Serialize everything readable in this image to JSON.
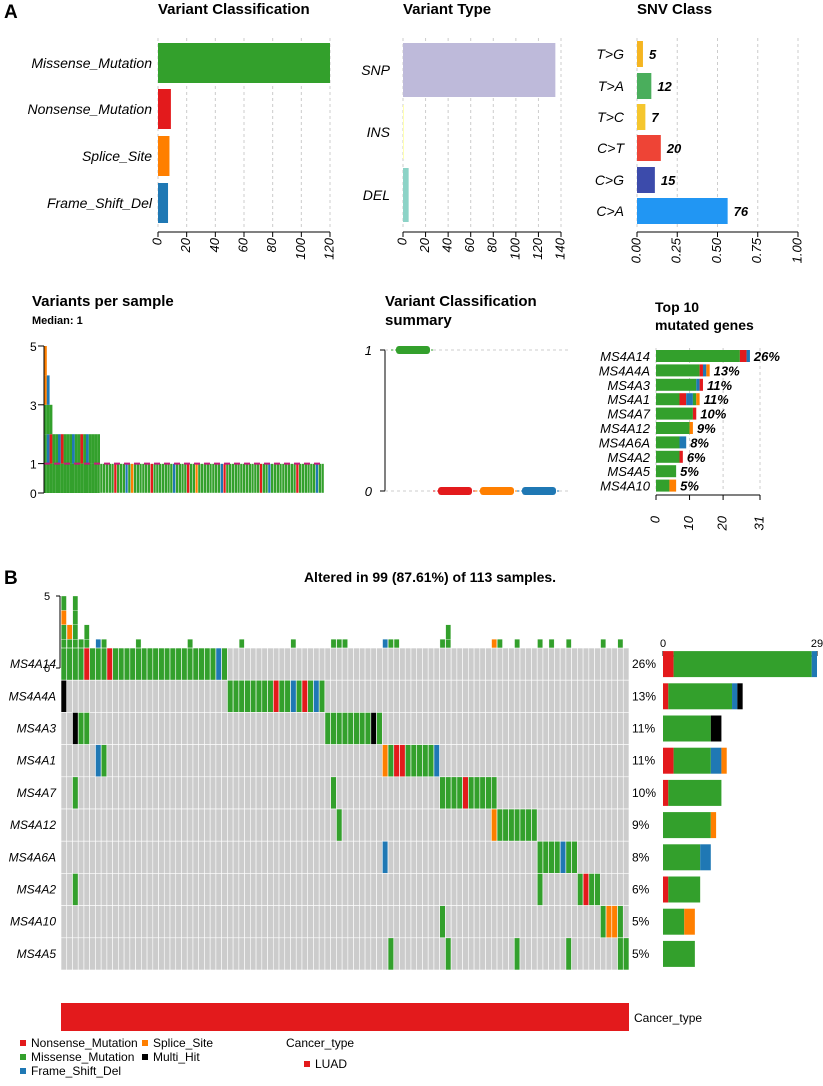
{
  "panels": {
    "a": "A",
    "b": "B"
  },
  "colors": {
    "Missense_Mutation": "#33a02c",
    "Nonsense_Mutation": "#e31a1c",
    "Splice_Site": "#ff7f00",
    "Frame_Shift_Del": "#1f78b4",
    "Multi_Hit": "#000000",
    "SNP": "#bebada",
    "INS": "#ffffb3",
    "DEL": "#8dd3c7",
    "LUAD": "#e31a1c",
    "grey": "#cccccc"
  },
  "chart_data": [
    {
      "id": "variant_classification",
      "type": "bar",
      "orientation": "horizontal",
      "title": "Variant Classification",
      "categories": [
        "Missense_Mutation",
        "Nonsense_Mutation",
        "Splice_Site",
        "Frame_Shift_Del"
      ],
      "values": [
        120,
        9,
        8,
        7
      ],
      "xlim": [
        0,
        120
      ],
      "xticks": [
        "0",
        "20",
        "40",
        "60",
        "80",
        "100",
        "120"
      ]
    },
    {
      "id": "variant_type",
      "type": "bar",
      "orientation": "horizontal",
      "title": "Variant Type",
      "categories": [
        "SNP",
        "INS",
        "DEL"
      ],
      "values": [
        135,
        0.5,
        5
      ],
      "xlim": [
        0,
        140
      ],
      "xticks": [
        "0",
        "20",
        "40",
        "60",
        "80",
        "100",
        "120",
        "140"
      ]
    },
    {
      "id": "snv_class",
      "type": "bar",
      "orientation": "horizontal",
      "title": "SNV Class",
      "categories": [
        "T>G",
        "T>A",
        "T>C",
        "C>T",
        "C>G",
        "C>A"
      ],
      "fractions": [
        0.037,
        0.089,
        0.052,
        0.148,
        0.111,
        0.563
      ],
      "labels": [
        "5",
        "12",
        "7",
        "20",
        "15",
        "76"
      ],
      "bar_colors": [
        "#f5b521",
        "#4aae5c",
        "#f5c62e",
        "#ee4436",
        "#3c4bab",
        "#2196f3"
      ],
      "xlim": [
        0,
        1
      ],
      "xticks": [
        "0.00",
        "0.25",
        "0.50",
        "0.75",
        "1.00"
      ]
    },
    {
      "id": "variants_per_sample",
      "type": "bar",
      "stacked": true,
      "title": "Variants per sample",
      "subtitle": "Median: 1",
      "yticks": [
        "0",
        "1",
        "3",
        "5"
      ],
      "median": 1,
      "ylim": [
        0,
        5
      ],
      "samples_top": [
        {
          "total": 5,
          "stack": [
            "Missense_Mutation",
            "Missense_Mutation",
            "Missense_Mutation",
            "Splice_Site",
            "Splice_Site"
          ]
        },
        {
          "total": 4,
          "stack": [
            "Missense_Mutation",
            "Frame_Shift_Del",
            "Missense_Mutation",
            "Frame_Shift_Del"
          ]
        },
        {
          "total": 3,
          "stack": [
            "Missense_Mutation",
            "Nonsense_Mutation",
            "Missense_Mutation"
          ]
        }
      ],
      "samples_with_2": 17,
      "samples_with_1": 80
    },
    {
      "id": "variant_classification_summary",
      "type": "boxplot",
      "title": "Variant Classification",
      "title2": "summary",
      "yticks": [
        "0",
        "1"
      ],
      "groups": [
        "Missense_Mutation",
        "Nonsense_Mutation",
        "Splice_Site",
        "Frame_Shift_Del"
      ],
      "medians": [
        1,
        0,
        0,
        0
      ]
    },
    {
      "id": "top10_genes",
      "type": "bar",
      "orientation": "horizontal",
      "stacked": true,
      "title": "Top 10",
      "title2": "mutated genes",
      "categories": [
        "MS4A14",
        "MS4A4A",
        "MS4A3",
        "MS4A1",
        "MS4A7",
        "MS4A12",
        "MS4A6A",
        "MS4A2",
        "MS4A5",
        "MS4A10"
      ],
      "labels": [
        "26%",
        "13%",
        "11%",
        "11%",
        "10%",
        "9%",
        "8%",
        "6%",
        "5%",
        "5%"
      ],
      "stacks": [
        [
          [
            "Missense_Mutation",
            25
          ],
          [
            "Nonsense_Mutation",
            2
          ],
          [
            "Frame_Shift_Del",
            1
          ]
        ],
        [
          [
            "Missense_Mutation",
            13
          ],
          [
            "Nonsense_Mutation",
            1
          ],
          [
            "Frame_Shift_Del",
            1
          ],
          [
            "Splice_Site",
            1
          ]
        ],
        [
          [
            "Missense_Mutation",
            12
          ],
          [
            "Frame_Shift_Del",
            1
          ],
          [
            "Nonsense_Mutation",
            1
          ]
        ],
        [
          [
            "Missense_Mutation",
            7
          ],
          [
            "Nonsense_Mutation",
            2
          ],
          [
            "Frame_Shift_Del",
            2
          ],
          [
            "Missense_Mutation",
            1
          ],
          [
            "Splice_Site",
            1
          ]
        ],
        [
          [
            "Missense_Mutation",
            11
          ],
          [
            "Nonsense_Mutation",
            1
          ]
        ],
        [
          [
            "Missense_Mutation",
            10
          ],
          [
            "Splice_Site",
            1
          ]
        ],
        [
          [
            "Missense_Mutation",
            7
          ],
          [
            "Frame_Shift_Del",
            2
          ]
        ],
        [
          [
            "Missense_Mutation",
            7
          ],
          [
            "Nonsense_Mutation",
            1
          ]
        ],
        [
          [
            "Missense_Mutation",
            6
          ]
        ],
        [
          [
            "Missense_Mutation",
            4
          ],
          [
            "Splice_Site",
            2
          ]
        ]
      ],
      "xlim": [
        0,
        31
      ],
      "xticks": [
        "0",
        "10",
        "20",
        "31"
      ],
      "tick_values": [
        0,
        10,
        20,
        31
      ]
    },
    {
      "id": "oncoplot",
      "type": "heatmap",
      "title": "Altered in 99 (87.61%) of 113 samples.",
      "genes": [
        "MS4A14",
        "MS4A4A",
        "MS4A3",
        "MS4A1",
        "MS4A7",
        "MS4A12",
        "MS4A6A",
        "MS4A2",
        "MS4A10",
        "MS4A5"
      ],
      "percents": [
        "26%",
        "13%",
        "11%",
        "11%",
        "10%",
        "9%",
        "8%",
        "6%",
        "5%",
        "5%"
      ],
      "n_samples": 99,
      "tmb_ticks": [
        "0",
        "5"
      ],
      "side_ticks": [
        "0",
        "29"
      ],
      "side_xlim": [
        0,
        29
      ],
      "side_stacks": [
        [
          [
            "Nonsense_Mutation",
            2
          ],
          [
            "Missense_Mutation",
            26
          ],
          [
            "Frame_Shift_Del",
            1
          ]
        ],
        [
          [
            "Nonsense_Mutation",
            1
          ],
          [
            "Missense_Mutation",
            12
          ],
          [
            "Frame_Shift_Del",
            1
          ],
          [
            "Multi_Hit",
            1
          ]
        ],
        [
          [
            "Missense_Mutation",
            9
          ],
          [
            "Multi_Hit",
            2
          ]
        ],
        [
          [
            "Nonsense_Mutation",
            2
          ],
          [
            "Missense_Mutation",
            7
          ],
          [
            "Frame_Shift_Del",
            2
          ],
          [
            "Splice_Site",
            1
          ]
        ],
        [
          [
            "Nonsense_Mutation",
            1
          ],
          [
            "Missense_Mutation",
            10
          ]
        ],
        [
          [
            "Missense_Mutation",
            9
          ],
          [
            "Splice_Site",
            1
          ]
        ],
        [
          [
            "Missense_Mutation",
            7
          ],
          [
            "Frame_Shift_Del",
            2
          ]
        ],
        [
          [
            "Nonsense_Mutation",
            1
          ],
          [
            "Missense_Mutation",
            6
          ]
        ],
        [
          [
            "Missense_Mutation",
            4
          ],
          [
            "Splice_Site",
            2
          ]
        ],
        [
          [
            "Missense_Mutation",
            6
          ]
        ]
      ],
      "cells": [
        {
          "g": 0,
          "from": 0,
          "to": 28,
          "t": "Missense_Mutation"
        },
        {
          "g": 0,
          "s": 4,
          "t": "Nonsense_Mutation"
        },
        {
          "g": 0,
          "s": 8,
          "t": "Nonsense_Mutation"
        },
        {
          "g": 0,
          "s": 27,
          "t": "Frame_Shift_Del"
        },
        {
          "g": 1,
          "s": 0,
          "t": "Multi_Hit"
        },
        {
          "g": 1,
          "from": 29,
          "to": 45,
          "t": "Missense_Mutation"
        },
        {
          "g": 1,
          "s": 37,
          "t": "Nonsense_Mutation"
        },
        {
          "g": 1,
          "s": 40,
          "t": "Frame_Shift_Del"
        },
        {
          "g": 1,
          "s": 42,
          "t": "Nonsense_Mutation"
        },
        {
          "g": 1,
          "s": 44,
          "t": "Frame_Shift_Del"
        },
        {
          "g": 2,
          "s": 2,
          "t": "Multi_Hit"
        },
        {
          "g": 2,
          "s": 3,
          "t": "Missense_Mutation"
        },
        {
          "g": 2,
          "s": 4,
          "t": "Missense_Mutation"
        },
        {
          "g": 2,
          "from": 46,
          "to": 55,
          "t": "Missense_Mutation"
        },
        {
          "g": 2,
          "s": 54,
          "t": "Multi_Hit"
        },
        {
          "g": 3,
          "s": 6,
          "t": "Frame_Shift_Del"
        },
        {
          "g": 3,
          "s": 7,
          "t": "Missense_Mutation"
        },
        {
          "g": 3,
          "s": 56,
          "t": "Splice_Site"
        },
        {
          "g": 3,
          "s": 57,
          "t": "Missense_Mutation"
        },
        {
          "g": 3,
          "s": 58,
          "t": "Nonsense_Mutation"
        },
        {
          "g": 3,
          "s": 59,
          "t": "Nonsense_Mutation"
        },
        {
          "g": 3,
          "from": 60,
          "to": 64,
          "t": "Missense_Mutation"
        },
        {
          "g": 3,
          "s": 65,
          "t": "Frame_Shift_Del"
        },
        {
          "g": 4,
          "s": 2,
          "t": "Missense_Mutation"
        },
        {
          "g": 4,
          "s": 47,
          "t": "Missense_Mutation"
        },
        {
          "g": 4,
          "from": 66,
          "to": 75,
          "t": "Missense_Mutation"
        },
        {
          "g": 4,
          "s": 70,
          "t": "Nonsense_Mutation"
        },
        {
          "g": 5,
          "s": 48,
          "t": "Missense_Mutation"
        },
        {
          "g": 5,
          "s": 75,
          "t": "Splice_Site"
        },
        {
          "g": 5,
          "from": 76,
          "to": 82,
          "t": "Missense_Mutation"
        },
        {
          "g": 6,
          "s": 56,
          "t": "Frame_Shift_Del"
        },
        {
          "g": 6,
          "from": 83,
          "to": 89,
          "t": "Missense_Mutation"
        },
        {
          "g": 6,
          "s": 87,
          "t": "Frame_Shift_Del"
        },
        {
          "g": 7,
          "s": 2,
          "t": "Missense_Mutation"
        },
        {
          "g": 7,
          "s": 83,
          "t": "Missense_Mutation"
        },
        {
          "g": 7,
          "from": 90,
          "to": 93,
          "t": "Missense_Mutation"
        },
        {
          "g": 7,
          "s": 91,
          "t": "Nonsense_Mutation"
        },
        {
          "g": 8,
          "s": 66,
          "t": "Missense_Mutation"
        },
        {
          "g": 8,
          "s": 94,
          "t": "Missense_Mutation"
        },
        {
          "g": 8,
          "s": 95,
          "t": "Splice_Site"
        },
        {
          "g": 8,
          "s": 96,
          "t": "Splice_Site"
        },
        {
          "g": 8,
          "s": 97,
          "t": "Missense_Mutation"
        },
        {
          "g": 9,
          "s": 57,
          "t": "Missense_Mutation"
        },
        {
          "g": 9,
          "s": 67,
          "t": "Missense_Mutation"
        },
        {
          "g": 9,
          "s": 79,
          "t": "Missense_Mutation"
        },
        {
          "g": 9,
          "s": 88,
          "t": "Missense_Mutation"
        },
        {
          "g": 9,
          "s": 97,
          "t": "Missense_Mutation"
        },
        {
          "g": 9,
          "s": 98,
          "t": "Missense_Mutation"
        }
      ],
      "annotation_label": "Cancer_type",
      "legend": {
        "items": [
          {
            "name": "Nonsense_Mutation",
            "label": "Nonsense_Mutation"
          },
          {
            "name": "Splice_Site",
            "label": "Splice_Site"
          },
          {
            "name": "Missense_Mutation",
            "label": "Missense_Mutation"
          },
          {
            "name": "Multi_Hit",
            "label": "Multi_Hit"
          },
          {
            "name": "Frame_Shift_Del",
            "label": "Frame_Shift_Del"
          }
        ],
        "annotation_title": "Cancer_type",
        "annotation_item": "LUAD"
      }
    }
  ]
}
